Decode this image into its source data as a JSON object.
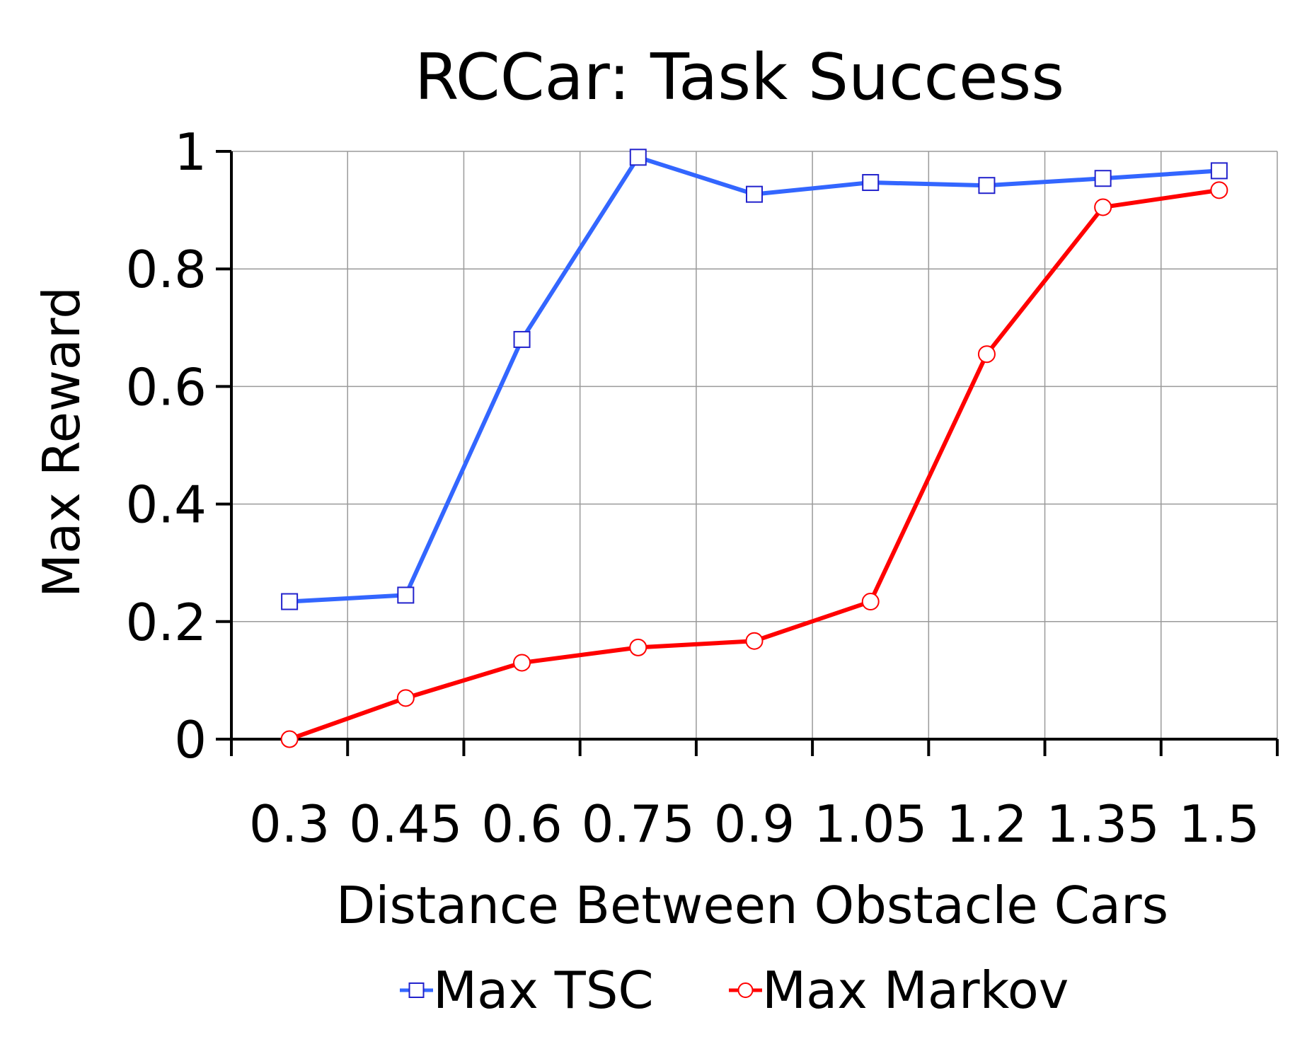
{
  "chart_data": {
    "type": "line",
    "title": "RCCar: Task Success",
    "xlabel": "Distance Between Obstacle Cars",
    "ylabel": "Max Reward",
    "categories": [
      "0.3",
      "0.45",
      "0.6",
      "0.75",
      "0.9",
      "1.05",
      "1.2",
      "1.35",
      "1.5"
    ],
    "y_ticks": [
      "0",
      "0.2",
      "0.4",
      "0.6",
      "0.8",
      "1"
    ],
    "ylim": [
      0,
      1
    ],
    "grid": true,
    "legend_position": "bottom",
    "series": [
      {
        "name": "Max TSC",
        "color": "#3366ff",
        "marker": "square",
        "values": [
          0.234,
          0.245,
          0.68,
          0.99,
          0.927,
          0.947,
          0.942,
          0.954,
          0.967
        ]
      },
      {
        "name": "Max Markov",
        "color": "#ff0000",
        "marker": "circle",
        "values": [
          0.0,
          0.07,
          0.13,
          0.156,
          0.167,
          0.234,
          0.655,
          0.905,
          0.934
        ]
      }
    ]
  }
}
